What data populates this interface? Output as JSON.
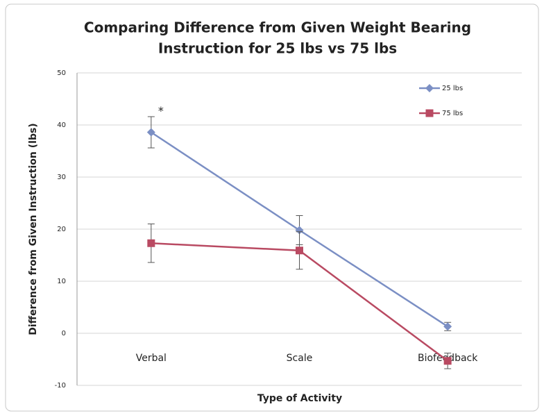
{
  "chart_data": {
    "type": "line",
    "title": [
      "Comparing Difference from Given Weight Bearing",
      "Instruction for 25 lbs vs 75 lbs"
    ],
    "x_label": "Type of Activity",
    "y_label": "Difference from Given Instruction (lbs)",
    "categories": [
      "Verbal",
      "Scale",
      "Biofeedback"
    ],
    "series": [
      {
        "name": "25 lbs",
        "color": "#7b8fc4",
        "marker": "diamond",
        "values": [
          38.6,
          19.8,
          1.3
        ],
        "errors": [
          3,
          2.8,
          0.8
        ]
      },
      {
        "name": "75 lbs",
        "color": "#b94a62",
        "marker": "square",
        "values": [
          17.3,
          15.9,
          -5.3
        ],
        "errors": [
          3.7,
          3.6,
          1.5
        ]
      }
    ],
    "annotations": [
      {
        "text": "*",
        "category": 0,
        "value": 43
      }
    ],
    "ylim": [
      -10,
      50
    ],
    "yticks": [
      -10,
      0,
      10,
      20,
      30,
      40,
      50
    ],
    "grid": true,
    "legend": "upper right"
  }
}
